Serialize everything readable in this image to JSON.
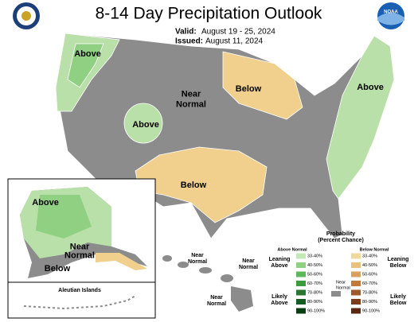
{
  "header": {
    "title": "8-14 Day Precipitation Outlook",
    "valid_label": "Valid:",
    "valid": "August 19 - 25, 2024",
    "issued_label": "Issued:",
    "issued": "August 11, 2024",
    "logo_text": "NOAA"
  },
  "conus_labels": [
    {
      "lines": [
        "Above"
      ]
    },
    {
      "lines": [
        "Near",
        "Normal"
      ]
    },
    {
      "lines": [
        "Below"
      ]
    },
    {
      "lines": [
        "Above"
      ]
    },
    {
      "lines": [
        "Below"
      ]
    },
    {
      "lines": [
        "Above"
      ]
    }
  ],
  "alaska_labels": [
    {
      "lines": [
        "Above"
      ]
    },
    {
      "lines": [
        "Near",
        "Normal"
      ]
    },
    {
      "lines": [
        "Below"
      ]
    }
  ],
  "aleutian_title": "Aleutian Islands",
  "hawaii_labels": [
    {
      "lines": [
        "Near",
        "Normal"
      ]
    },
    {
      "lines": [
        "Near",
        "Normal"
      ]
    },
    {
      "lines": [
        "Near",
        "Normal"
      ]
    }
  ],
  "legend": {
    "title": [
      "Probability",
      "(Percent Chance)"
    ],
    "above_header": "Above Normal",
    "below_header": "Below Normal",
    "leaning_above": [
      "Leaning",
      "Above"
    ],
    "likely_above": [
      "Likely",
      "Above"
    ],
    "near": [
      "Near",
      "Normal"
    ],
    "leaning_below": [
      "Leaning",
      "Below"
    ],
    "likely_below": [
      "Likely",
      "Below"
    ],
    "above_ranges": [
      "33-40%",
      "40-50%",
      "50-60%",
      "60-70%",
      "70-80%",
      "80-90%",
      "90-100%"
    ],
    "below_ranges": [
      "33-40%",
      "40-50%",
      "50-60%",
      "60-70%",
      "70-80%",
      "80-90%",
      "90-100%"
    ]
  }
}
